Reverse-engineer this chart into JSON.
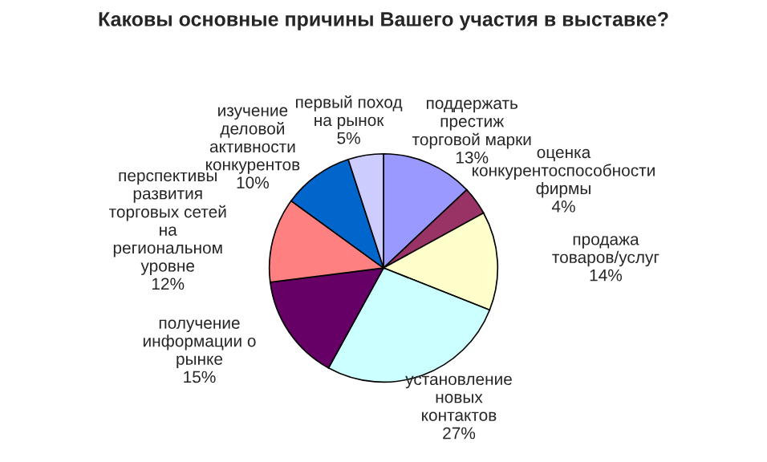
{
  "chart_data": {
    "type": "pie",
    "title": "Каковы основные причины Вашего участия в выставке?",
    "categories": [
      "поддержать\nпрестиж\nторговой марки",
      "оценка\nконкурентоспособности\nфирмы",
      "продажа\nтоваров/услуг",
      "установление\nновых\nконтактов",
      "получение\nинформации о\nрынке",
      "перспективы\nразвития\nторговых сетей\nна\nрегиональном\nуровне",
      "изучение\nделовой\nактивности\nконкурентов",
      "первый поход\nна рынок"
    ],
    "values": [
      13,
      4,
      14,
      27,
      15,
      12,
      10,
      5
    ],
    "value_labels": [
      "13%",
      "4%",
      "14%",
      "27%",
      "15%",
      "12%",
      "10%",
      "5%"
    ],
    "colors": [
      "#9999ff",
      "#993366",
      "#ffffcc",
      "#ccffff",
      "#660066",
      "#ff8080",
      "#0066cc",
      "#ccccff"
    ],
    "legend": false
  }
}
